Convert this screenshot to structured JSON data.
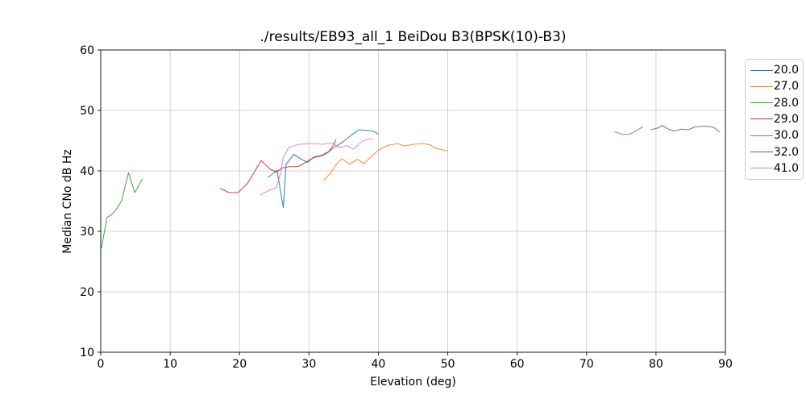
{
  "chart_data": {
    "type": "line",
    "title": "./results/EB93_all_1 BeiDou B3(BPSK(10)-B3)",
    "xlabel": "Elevation (deg)",
    "ylabel": "Median CNo dB Hz",
    "xlim": [
      0,
      90
    ],
    "ylim": [
      10,
      60
    ],
    "xticks": [
      0,
      10,
      20,
      30,
      40,
      50,
      60,
      70,
      80,
      90
    ],
    "yticks": [
      10,
      20,
      30,
      40,
      50,
      60
    ],
    "grid": true,
    "legend_position": "outside-right",
    "series": [
      {
        "name": "20.0",
        "color": "#1f77b4",
        "points": [
          [
            24.1,
            38.9
          ],
          [
            25.4,
            40.1
          ],
          [
            26.3,
            33.9
          ],
          [
            26.7,
            41.1
          ],
          [
            27.8,
            42.7
          ],
          [
            29.1,
            41.8
          ],
          [
            29.8,
            41.4
          ],
          [
            30.7,
            42.3
          ],
          [
            31.9,
            42.6
          ],
          [
            33.0,
            43.3
          ],
          [
            33.8,
            44.0
          ],
          [
            35.0,
            44.9
          ],
          [
            36.2,
            46.0
          ],
          [
            37.2,
            46.8
          ],
          [
            38.3,
            46.7
          ],
          [
            39.2,
            46.6
          ],
          [
            40.0,
            46.1
          ]
        ]
      },
      {
        "name": "27.0",
        "color": "#ff7f0e",
        "points": [
          [
            32.1,
            38.4
          ],
          [
            33.1,
            39.6
          ],
          [
            34.0,
            41.2
          ],
          [
            34.8,
            42.0
          ],
          [
            35.8,
            41.1
          ],
          [
            37.0,
            41.9
          ],
          [
            37.9,
            41.2
          ],
          [
            39.0,
            42.4
          ],
          [
            40.2,
            43.6
          ],
          [
            41.6,
            44.3
          ],
          [
            42.8,
            44.5
          ],
          [
            43.8,
            44.1
          ],
          [
            45.0,
            44.4
          ],
          [
            46.5,
            44.5
          ],
          [
            47.5,
            44.3
          ],
          [
            48.3,
            43.7
          ],
          [
            50.0,
            43.3
          ]
        ]
      },
      {
        "name": "28.0",
        "color": "#2ca02c",
        "points": [
          [
            0.1,
            27.2
          ],
          [
            0.9,
            32.3
          ],
          [
            1.5,
            32.7
          ],
          [
            2.2,
            33.6
          ],
          [
            3.0,
            35.0
          ],
          [
            4.0,
            39.7
          ],
          [
            4.9,
            36.4
          ],
          [
            6.0,
            38.7
          ]
        ]
      },
      {
        "name": "29.0",
        "color": "#d62728",
        "points": [
          [
            17.2,
            37.1
          ],
          [
            18.5,
            36.4
          ],
          [
            19.8,
            36.4
          ],
          [
            21.2,
            38.0
          ],
          [
            23.1,
            41.7
          ],
          [
            24.4,
            40.3
          ],
          [
            25.3,
            39.8
          ],
          [
            26.2,
            40.5
          ],
          [
            27.2,
            40.7
          ],
          [
            28.4,
            40.7
          ],
          [
            29.5,
            41.4
          ],
          [
            30.7,
            42.2
          ],
          [
            31.9,
            42.5
          ],
          [
            32.8,
            43.1
          ],
          [
            33.5,
            44.2
          ],
          [
            33.9,
            45.2
          ]
        ]
      },
      {
        "name": "30.0",
        "color": "#9467bd",
        "points": [
          [
            74.0,
            46.5
          ],
          [
            75.2,
            46.0
          ],
          [
            76.3,
            46.1
          ],
          [
            77.4,
            46.8
          ],
          [
            78.1,
            47.3
          ]
        ]
      },
      {
        "name": "32.0",
        "color": "#8c564b",
        "points": [
          [
            79.3,
            46.8
          ],
          [
            80.3,
            47.1
          ],
          [
            80.9,
            47.5
          ],
          [
            81.8,
            46.9
          ],
          [
            82.6,
            46.6
          ],
          [
            83.6,
            46.9
          ],
          [
            84.6,
            46.8
          ],
          [
            85.7,
            47.3
          ],
          [
            87.2,
            47.4
          ],
          [
            88.3,
            47.2
          ],
          [
            89.2,
            46.4
          ]
        ]
      },
      {
        "name": "41.0",
        "color": "#e377c2",
        "points": [
          [
            22.9,
            36.0
          ],
          [
            24.3,
            36.8
          ],
          [
            25.3,
            37.2
          ],
          [
            25.9,
            39.6
          ],
          [
            26.3,
            42.2
          ],
          [
            27.1,
            43.9
          ],
          [
            28.6,
            44.4
          ],
          [
            30.7,
            44.5
          ],
          [
            32.0,
            44.4
          ],
          [
            33.4,
            44.6
          ],
          [
            34.4,
            43.8
          ],
          [
            35.4,
            44.2
          ],
          [
            36.4,
            43.6
          ],
          [
            37.8,
            45.0
          ],
          [
            38.6,
            45.2
          ],
          [
            39.3,
            45.3
          ]
        ]
      }
    ]
  }
}
